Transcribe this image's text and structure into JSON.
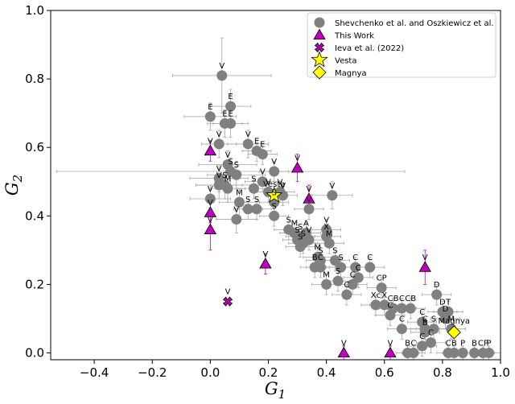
{
  "chart_data": {
    "type": "scatter",
    "title": "",
    "xlabel": "G",
    "xlabel_sub": "1",
    "ylabel": "G",
    "ylabel_sub": "2",
    "xlim": [
      -0.55,
      1.0
    ],
    "ylim": [
      -0.02,
      1.0
    ],
    "xticks": [
      -0.4,
      -0.2,
      0.0,
      0.2,
      0.4,
      0.6,
      0.8,
      1.0
    ],
    "xtick_labels": [
      "−0.4",
      "−0.2",
      "0.0",
      "0.2",
      "0.4",
      "0.6",
      "0.8",
      "1.0"
    ],
    "yticks": [
      0.0,
      0.2,
      0.4,
      0.6,
      0.8,
      1.0
    ],
    "ytick_labels": [
      "0.0",
      "0.2",
      "0.4",
      "0.6",
      "0.8",
      "1.0"
    ],
    "grid": false,
    "legend_position": "top-right",
    "colors": {
      "shevchenko": "#808080",
      "this_work": "#bf00bf",
      "ieva": "#bf00bf",
      "vesta": "#ffff00",
      "magnya": "#ffff00",
      "errorbar": "#a6a6a6",
      "this_work_errorbar": "#bf00bf"
    },
    "series": [
      {
        "name": "Shevchenko et al. and Oszkiewicz et al.",
        "marker": "circle",
        "points": [
          {
            "x": 0.0,
            "y": 0.69,
            "xerr": 0.09,
            "yerr": 0.04,
            "label": "E"
          },
          {
            "x": 0.04,
            "y": 0.81,
            "xerr": 0.17,
            "yerr": 0.11,
            "label": "V"
          },
          {
            "x": 0.07,
            "y": 0.72,
            "xerr": 0.07,
            "yerr": 0.05,
            "label": "E"
          },
          {
            "x": 0.05,
            "y": 0.67,
            "xerr": 0.06,
            "yerr": 0.04,
            "label": "E"
          },
          {
            "x": 0.07,
            "y": 0.67,
            "xerr": 0.06,
            "yerr": 0.04,
            "label": "E"
          },
          {
            "x": 0.03,
            "y": 0.61,
            "xerr": 0.06,
            "yerr": 0.04,
            "label": "V"
          },
          {
            "x": 0.13,
            "y": 0.61,
            "xerr": 0.07,
            "yerr": 0.04,
            "label": "V"
          },
          {
            "x": 0.16,
            "y": 0.59,
            "xerr": 0.05,
            "yerr": 0.03,
            "label": "E"
          },
          {
            "x": 0.18,
            "y": 0.58,
            "xerr": 0.05,
            "yerr": 0.03,
            "label": "E"
          },
          {
            "x": 0.06,
            "y": 0.55,
            "xerr": 0.1,
            "yerr": 0.04,
            "label": "V"
          },
          {
            "x": 0.07,
            "y": 0.53,
            "xerr": 0.6,
            "yerr": 0.04,
            "label": "S"
          },
          {
            "x": 0.09,
            "y": 0.52,
            "xerr": 0.1,
            "yerr": 0.04,
            "label": "S"
          },
          {
            "x": 0.03,
            "y": 0.51,
            "xerr": 0.1,
            "yerr": 0.04,
            "label": "V"
          },
          {
            "x": 0.05,
            "y": 0.49,
            "xerr": 0.1,
            "yerr": 0.04,
            "label": "S"
          },
          {
            "x": 0.03,
            "y": 0.49,
            "xerr": 0.08,
            "yerr": 0.04,
            "label": "V"
          },
          {
            "x": 0.06,
            "y": 0.48,
            "xerr": 0.06,
            "yerr": 0.04,
            "label": "M"
          },
          {
            "x": 0.0,
            "y": 0.45,
            "xerr": 0.07,
            "yerr": 0.04,
            "label": "V"
          },
          {
            "x": 0.1,
            "y": 0.44,
            "xerr": 0.07,
            "yerr": 0.04,
            "label": "M"
          },
          {
            "x": 0.13,
            "y": 0.42,
            "xerr": 0.05,
            "yerr": 0.03,
            "label": "S"
          },
          {
            "x": 0.16,
            "y": 0.42,
            "xerr": 0.05,
            "yerr": 0.03,
            "label": "S"
          },
          {
            "x": 0.09,
            "y": 0.39,
            "xerr": 0.07,
            "yerr": 0.04,
            "label": "V"
          },
          {
            "x": 0.18,
            "y": 0.5,
            "xerr": 0.06,
            "yerr": 0.03,
            "label": "V"
          },
          {
            "x": 0.15,
            "y": 0.48,
            "xerr": 0.06,
            "yerr": 0.03,
            "label": "S"
          },
          {
            "x": 0.22,
            "y": 0.53,
            "xerr": 0.05,
            "yerr": 0.03,
            "label": "V"
          },
          {
            "x": 0.2,
            "y": 0.47,
            "xerr": 0.05,
            "yerr": 0.03,
            "label": "V"
          },
          {
            "x": 0.24,
            "y": 0.47,
            "xerr": 0.05,
            "yerr": 0.03,
            "label": "V"
          },
          {
            "x": 0.25,
            "y": 0.46,
            "xerr": 0.05,
            "yerr": 0.03,
            "label": "V"
          },
          {
            "x": 0.22,
            "y": 0.44,
            "xerr": 0.05,
            "yerr": 0.03,
            "label": "S"
          },
          {
            "x": 0.22,
            "y": 0.4,
            "xerr": 0.05,
            "yerr": 0.03,
            "label": "S"
          },
          {
            "x": 0.34,
            "y": 0.42,
            "xerr": 0.05,
            "yerr": 0.03,
            "label": "V"
          },
          {
            "x": 0.42,
            "y": 0.46,
            "xerr": 0.07,
            "yerr": 0.04,
            "label": "V"
          },
          {
            "x": 0.27,
            "y": 0.36,
            "xerr": 0.05,
            "yerr": 0.03,
            "label": "S"
          },
          {
            "x": 0.29,
            "y": 0.35,
            "xerr": 0.05,
            "yerr": 0.03,
            "label": "M"
          },
          {
            "x": 0.31,
            "y": 0.34,
            "xerr": 0.05,
            "yerr": 0.03,
            "label": "S"
          },
          {
            "x": 0.33,
            "y": 0.35,
            "xerr": 0.05,
            "yerr": 0.03,
            "label": "A"
          },
          {
            "x": 0.3,
            "y": 0.33,
            "xerr": 0.05,
            "yerr": 0.03,
            "label": "S"
          },
          {
            "x": 0.32,
            "y": 0.32,
            "xerr": 0.05,
            "yerr": 0.03,
            "label": "S"
          },
          {
            "x": 0.34,
            "y": 0.33,
            "xerr": 0.05,
            "yerr": 0.03,
            "label": "V"
          },
          {
            "x": 0.4,
            "y": 0.36,
            "xerr": 0.05,
            "yerr": 0.03,
            "label": "V"
          },
          {
            "x": 0.4,
            "y": 0.34,
            "xerr": 0.05,
            "yerr": 0.03,
            "label": "X"
          },
          {
            "x": 0.41,
            "y": 0.32,
            "xerr": 0.05,
            "yerr": 0.03,
            "label": "M"
          },
          {
            "x": 0.31,
            "y": 0.31,
            "xerr": 0.05,
            "yerr": 0.03,
            "label": "S"
          },
          {
            "x": 0.37,
            "y": 0.28,
            "xerr": 0.05,
            "yerr": 0.03,
            "label": "M"
          },
          {
            "x": 0.38,
            "y": 0.27,
            "xerr": 0.05,
            "yerr": 0.03,
            "label": "S"
          },
          {
            "x": 0.43,
            "y": 0.27,
            "xerr": 0.05,
            "yerr": 0.03,
            "label": "S"
          },
          {
            "x": 0.36,
            "y": 0.25,
            "xerr": 0.05,
            "yerr": 0.03,
            "label": "B"
          },
          {
            "x": 0.38,
            "y": 0.25,
            "xerr": 0.05,
            "yerr": 0.03,
            "label": "C"
          },
          {
            "x": 0.45,
            "y": 0.25,
            "xerr": 0.05,
            "yerr": 0.03,
            "label": "S"
          },
          {
            "x": 0.44,
            "y": 0.21,
            "xerr": 0.05,
            "yerr": 0.03,
            "label": "S"
          },
          {
            "x": 0.4,
            "y": 0.2,
            "xerr": 0.05,
            "yerr": 0.03,
            "label": "M"
          },
          {
            "x": 0.5,
            "y": 0.25,
            "xerr": 0.05,
            "yerr": 0.03,
            "label": "C"
          },
          {
            "x": 0.55,
            "y": 0.25,
            "xerr": 0.05,
            "yerr": 0.03,
            "label": "C"
          },
          {
            "x": 0.51,
            "y": 0.22,
            "xerr": 0.05,
            "yerr": 0.03,
            "label": "C"
          },
          {
            "x": 0.49,
            "y": 0.2,
            "xerr": 0.05,
            "yerr": 0.03,
            "label": "C"
          },
          {
            "x": 0.47,
            "y": 0.17,
            "xerr": 0.05,
            "yerr": 0.03,
            "label": "C"
          },
          {
            "x": 0.59,
            "y": 0.19,
            "xerr": 0.05,
            "yerr": 0.03,
            "label": "CP"
          },
          {
            "x": 0.57,
            "y": 0.14,
            "xerr": 0.05,
            "yerr": 0.03,
            "label": "Xc"
          },
          {
            "x": 0.6,
            "y": 0.14,
            "xerr": 0.05,
            "yerr": 0.03,
            "label": "X"
          },
          {
            "x": 0.63,
            "y": 0.13,
            "xerr": 0.05,
            "yerr": 0.03,
            "label": "CB"
          },
          {
            "x": 0.62,
            "y": 0.11,
            "xerr": 0.05,
            "yerr": 0.03,
            "label": "C"
          },
          {
            "x": 0.66,
            "y": 0.13,
            "xerr": 0.05,
            "yerr": 0.03,
            "label": "C"
          },
          {
            "x": 0.69,
            "y": 0.13,
            "xerr": 0.05,
            "yerr": 0.03,
            "label": "CB"
          },
          {
            "x": 0.66,
            "y": 0.07,
            "xerr": 0.05,
            "yerr": 0.03,
            "label": "C"
          },
          {
            "x": 0.78,
            "y": 0.17,
            "xerr": 0.05,
            "yerr": 0.03,
            "label": "D"
          },
          {
            "x": 0.8,
            "y": 0.12,
            "xerr": 0.05,
            "yerr": 0.03,
            "label": "D"
          },
          {
            "x": 0.82,
            "y": 0.12,
            "xerr": 0.05,
            "yerr": 0.03,
            "label": "T"
          },
          {
            "x": 0.81,
            "y": 0.1,
            "xerr": 0.05,
            "yerr": 0.03,
            "label": "D"
          },
          {
            "x": 0.73,
            "y": 0.09,
            "xerr": 0.05,
            "yerr": 0.03,
            "label": "C"
          },
          {
            "x": 0.74,
            "y": 0.07,
            "xerr": 0.05,
            "yerr": 0.03,
            "label": "C"
          },
          {
            "x": 0.74,
            "y": 0.06,
            "xerr": 0.05,
            "yerr": 0.03,
            "label": "B"
          },
          {
            "x": 0.77,
            "y": 0.07,
            "xerr": 0.05,
            "yerr": 0.03,
            "label": "S"
          },
          {
            "x": 0.83,
            "y": 0.07,
            "xerr": 0.05,
            "yerr": 0.03,
            "label": "M"
          },
          {
            "x": 0.73,
            "y": 0.02,
            "xerr": 0.05,
            "yerr": 0.03,
            "label": "C"
          },
          {
            "x": 0.76,
            "y": 0.03,
            "xerr": 0.05,
            "yerr": 0.03,
            "label": "C"
          },
          {
            "x": 0.68,
            "y": 0.0,
            "xerr": 0.04,
            "yerr": 0.02,
            "label": "B"
          },
          {
            "x": 0.7,
            "y": 0.0,
            "xerr": 0.04,
            "yerr": 0.02,
            "label": "C"
          },
          {
            "x": 0.82,
            "y": 0.0,
            "xerr": 0.04,
            "yerr": 0.02,
            "label": "C"
          },
          {
            "x": 0.84,
            "y": 0.0,
            "xerr": 0.04,
            "yerr": 0.02,
            "label": "B"
          },
          {
            "x": 0.87,
            "y": 0.0,
            "xerr": 0.04,
            "yerr": 0.02,
            "label": "P"
          },
          {
            "x": 0.91,
            "y": 0.0,
            "xerr": 0.04,
            "yerr": 0.02,
            "label": "B"
          },
          {
            "x": 0.94,
            "y": 0.0,
            "xerr": 0.04,
            "yerr": 0.02,
            "label": "CP"
          },
          {
            "x": 0.96,
            "y": 0.0,
            "xerr": 0.04,
            "yerr": 0.02,
            "label": "P"
          }
        ]
      },
      {
        "name": "This Work",
        "marker": "triangle",
        "points": [
          {
            "x": 0.0,
            "y": 0.59,
            "xerr": 0.0,
            "yerr": 0.03,
            "label": "V"
          },
          {
            "x": 0.0,
            "y": 0.41,
            "xerr": 0.0,
            "yerr": 0.03,
            "label": "V"
          },
          {
            "x": 0.0,
            "y": 0.36,
            "xerr": 0.0,
            "yerr": 0.06,
            "label": "V"
          },
          {
            "x": 0.19,
            "y": 0.26,
            "xerr": 0.0,
            "yerr": 0.03,
            "label": "V"
          },
          {
            "x": 0.3,
            "y": 0.54,
            "xerr": 0.0,
            "yerr": 0.04,
            "label": "V"
          },
          {
            "x": 0.34,
            "y": 0.45,
            "xerr": 0.0,
            "yerr": 0.04,
            "label": "V"
          },
          {
            "x": 0.46,
            "y": 0.0,
            "xerr": 0.0,
            "yerr": 0.02,
            "label": "V"
          },
          {
            "x": 0.62,
            "y": 0.0,
            "xerr": 0.0,
            "yerr": 0.02,
            "label": "V"
          },
          {
            "x": 0.74,
            "y": 0.25,
            "xerr": 0.0,
            "yerr": 0.05,
            "label": "V"
          }
        ]
      },
      {
        "name": "Ieva et al. (2022)",
        "marker": "x",
        "points": [
          {
            "x": 0.06,
            "y": 0.15,
            "xerr": 0.0,
            "yerr": 0.0,
            "label": "V"
          }
        ]
      },
      {
        "name": "Vesta",
        "marker": "star",
        "points": [
          {
            "x": 0.22,
            "y": 0.46,
            "xerr": 0.0,
            "yerr": 0.0,
            "label": "Vesta"
          }
        ]
      },
      {
        "name": "Magnya",
        "marker": "diamond",
        "points": [
          {
            "x": 0.84,
            "y": 0.06,
            "xerr": 0.0,
            "yerr": 0.0,
            "label": "Magnya"
          }
        ]
      }
    ]
  }
}
